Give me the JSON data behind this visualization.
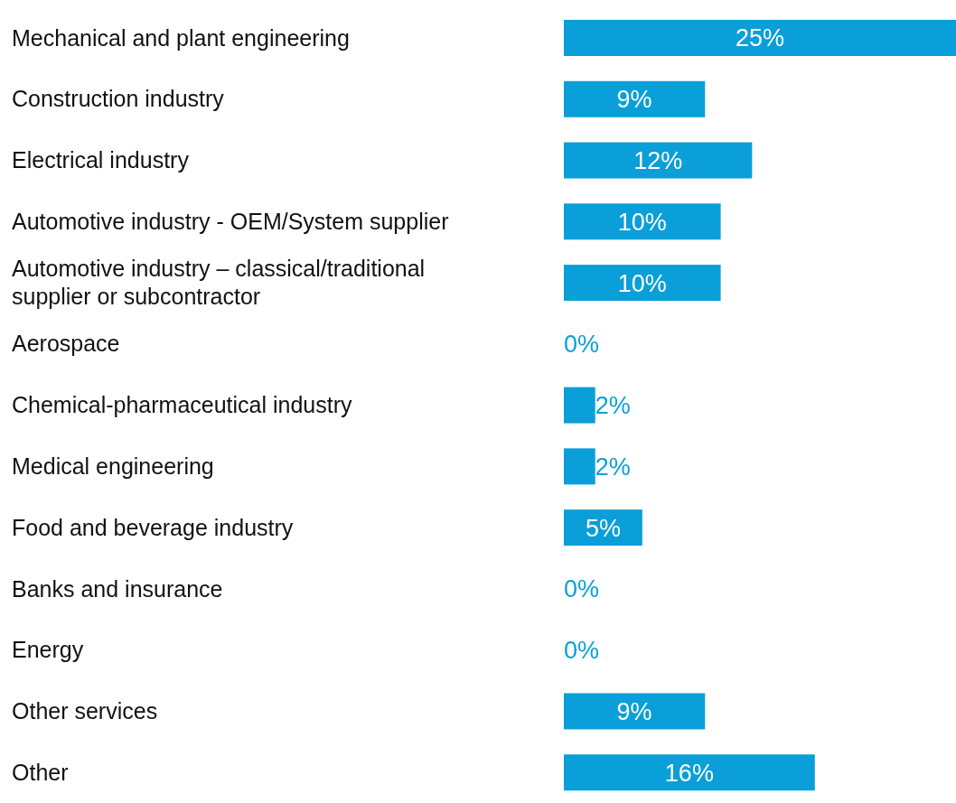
{
  "chart_data": {
    "type": "bar",
    "orientation": "horizontal",
    "categories": [
      "Mechanical and plant engineering",
      "Construction industry",
      "Electrical industry",
      "Automotive industry - OEM/System supplier",
      "Automotive industry – classical/traditional supplier or subcontractor",
      "Aerospace",
      "Chemical-pharmaceutical industry",
      "Medical engineering",
      "Food and beverage industry",
      "Banks and insurance",
      "Energy",
      "Other services",
      "Other"
    ],
    "values": [
      25,
      9,
      12,
      10,
      10,
      0,
      2,
      2,
      5,
      0,
      0,
      9,
      16
    ],
    "value_labels": [
      "25%",
      "9%",
      "12%",
      "10%",
      "10%",
      "0%",
      "2%",
      "2%",
      "5%",
      "0%",
      "0%",
      "9%",
      "16%"
    ],
    "color": "#0a9fd8",
    "xlim": [
      0,
      25
    ]
  }
}
